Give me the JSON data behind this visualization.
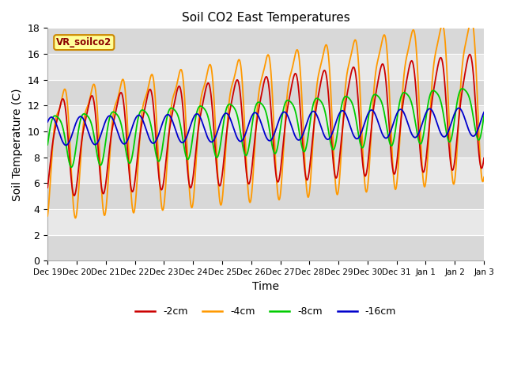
{
  "title": "Soil CO2 East Temperatures",
  "xlabel": "Time",
  "ylabel": "Soil Temperature (C)",
  "ylim": [
    0,
    18
  ],
  "legend_label": "VR_soilco2",
  "colors": {
    "-2cm": "#cc0000",
    "-4cm": "#ff9900",
    "-8cm": "#00cc00",
    "-16cm": "#0000cc"
  },
  "legend_entries": [
    "-2cm",
    "-4cm",
    "-8cm",
    "-16cm"
  ],
  "background_color": "#ffffff",
  "plot_bg_color": "#f0f0f0",
  "tick_labels": [
    "Dec 19",
    "Dec 20",
    "Dec 21",
    "Dec 22",
    "Dec 23",
    "Dec 24",
    "Dec 25",
    "Dec 26",
    "Dec 27",
    "Dec 28",
    "Dec 29",
    "Dec 30",
    "Dec 31",
    "Jan 1",
    "Jan 2",
    "Jan 3"
  ]
}
